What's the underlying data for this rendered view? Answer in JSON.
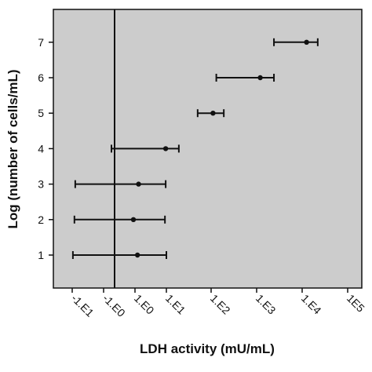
{
  "chart_data": {
    "type": "scatter",
    "title": "",
    "xlabel": "LDH activity (mU/mL)",
    "ylabel": "Log (number of cells/mL)",
    "x_scale": "symlog",
    "x_ticks": [
      -10,
      -1,
      1,
      10,
      100,
      1000,
      10000,
      100000
    ],
    "x_tick_labels": [
      "-1.E1",
      "-1.E0",
      "1.E0",
      "1.E1",
      "1.E2",
      "1.E3",
      "1.E4",
      "1E5"
    ],
    "y_ticks": [
      1,
      2,
      3,
      4,
      5,
      6,
      7
    ],
    "y_tick_labels": [
      "1",
      "2",
      "3",
      "4",
      "5",
      "6",
      "7"
    ],
    "ylim": [
      0.3,
      7.7
    ],
    "reference_line_x": -0.3,
    "background": "#cccccc",
    "grid": false,
    "points": [
      {
        "y": 1,
        "x": 1.2,
        "x_low": -9.5,
        "x_high": 10
      },
      {
        "y": 2,
        "x": 0.9,
        "x_low": -8.5,
        "x_high": 9
      },
      {
        "y": 3,
        "x": 1.3,
        "x_low": -8,
        "x_high": 9.5
      },
      {
        "y": 4,
        "x": 9.5,
        "x_low": -0.5,
        "x_high": 19
      },
      {
        "y": 5,
        "x": 110,
        "x_low": 50,
        "x_high": 190
      },
      {
        "y": 6,
        "x": 1200,
        "x_low": 130,
        "x_high": 2400
      },
      {
        "y": 7,
        "x": 12500,
        "x_low": 2400,
        "x_high": 22000
      }
    ]
  }
}
